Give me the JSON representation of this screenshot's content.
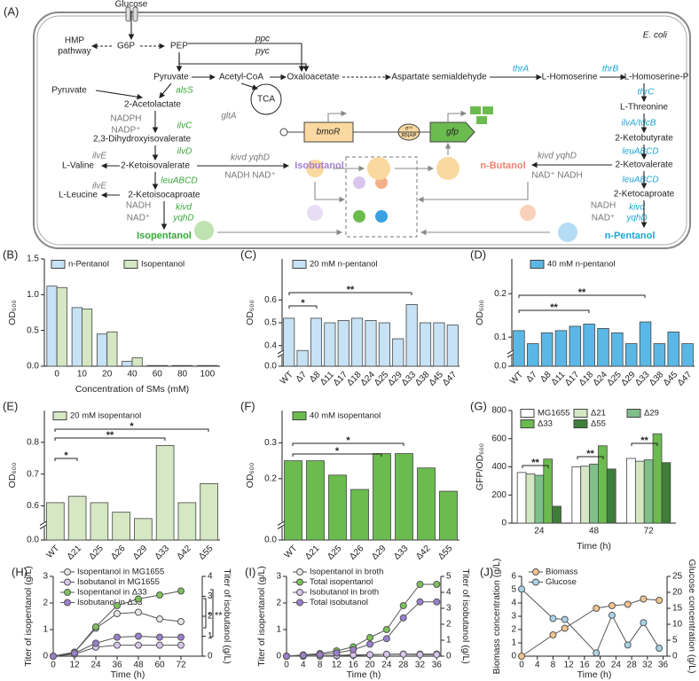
{
  "diagram": {
    "panel": "(A)",
    "labels": [
      "Glucose",
      "E. coli",
      "G6P",
      "HMP",
      "pathway",
      "PEP",
      "ppc",
      "pyc",
      "Pyruvate",
      "Acetyl-CoA",
      "Oxaloacetate",
      "Aspartate semialdehyde",
      "thrA",
      "L-Homoserine",
      "thrB",
      "L-Homoserine-P",
      "thrC",
      "L-Threonine",
      "ilvA/tdcB",
      "2-Ketobutyrate",
      "leuABCD",
      "2-Ketovalerate",
      "kivd  yqhD",
      "NAD⁺  NADH",
      "n-Butanol",
      "leuABCD",
      "2-Ketocaproate",
      "NADH",
      "NAD⁺",
      "kivd",
      "yqhD",
      "n-Pentanol",
      "Pyruvate",
      "alsS",
      "gltA",
      "TCA",
      "2-Acetolactate",
      "NADPH",
      "NADP⁺",
      "ilvC",
      "2,3-Dihydroxyisovalerate",
      "ilvD",
      "2-Ketoisovalerate",
      "ilvE",
      "L-Valine",
      "kivd  yqhD",
      "NADH  NAD⁺",
      "Isobutanol",
      "leuABCD",
      "ilvE",
      "L-Leucine",
      "2-Ketoisocaproate",
      "NADH",
      "NAD⁺",
      "kivd",
      "yqhD",
      "Isopentanol",
      "bmoR",
      "gfp",
      "σ⁵⁴",
      "RNAP"
    ]
  },
  "chart_data": [
    {
      "type": "bar",
      "panel": "(B)",
      "xlabel": "Concentration of SMs (mM)",
      "ylabel": "OD₆₀₀",
      "categories": [
        "0",
        "10",
        "20",
        "40",
        "60",
        "80",
        "100"
      ],
      "series": [
        {
          "name": "n-Pentanol",
          "color": "#c6e2f4",
          "values": [
            1.12,
            0.82,
            0.45,
            0.07,
            0.01,
            0.01,
            0.01
          ]
        },
        {
          "name": "Isopentanol",
          "color": "#d5e7c3",
          "values": [
            1.1,
            0.8,
            0.48,
            0.12,
            0.01,
            0.01,
            0.01
          ]
        }
      ],
      "ylim": [
        0,
        1.5
      ],
      "yticks": [
        {
          "value": 0,
          "label": "0.0"
        },
        0.5,
        {
          "value": 1,
          "label": "1.0"
        },
        1.5
      ],
      "xtick_rotation": 0,
      "annotations": []
    },
    {
      "type": "bar",
      "panel": "(C)",
      "ylabel": "OD₆₀₀",
      "categories": [
        "WT",
        "Δ7",
        "Δ8",
        "Δ11",
        "Δ17",
        "Δ18",
        "Δ24",
        "Δ25",
        "Δ29",
        "Δ33",
        "Δ38",
        "Δ45",
        "Δ47"
      ],
      "series": [
        {
          "name": "20 mM n-pentanol",
          "color": "#c6e2f4",
          "values": [
            0.52,
            0.36,
            0.52,
            0.5,
            0.51,
            0.52,
            0.51,
            0.5,
            0.43,
            0.58,
            0.5,
            0.5,
            0.49
          ]
        }
      ],
      "ylim": [
        0,
        0.78
      ],
      "ybreak": [
        0.03,
        0.38
      ],
      "yticks": [
        {
          "value": 0,
          "label": "0.0"
        },
        0.4,
        0.5,
        0.6
      ],
      "xtick_rotation": -45,
      "annotations": [
        "*",
        "**"
      ]
    },
    {
      "type": "bar",
      "panel": "(D)",
      "ylabel": "OD₆₀₀",
      "categories": [
        "WT",
        "Δ7",
        "Δ8",
        "Δ11",
        "Δ17",
        "Δ18",
        "Δ24",
        "Δ25",
        "Δ29",
        "Δ33",
        "Δ38",
        "Δ45",
        "Δ47"
      ],
      "series": [
        {
          "name": "40 mM n-pentanol",
          "color": "#5bb8e6",
          "values": [
            0.115,
            0.085,
            0.11,
            0.115,
            0.125,
            0.13,
            0.12,
            0.11,
            0.085,
            0.135,
            0.085,
            0.112,
            0.085
          ]
        }
      ],
      "ylim": [
        0,
        0.28
      ],
      "ybreak": [
        0.02,
        0.07
      ],
      "yticks": [
        {
          "value": 0,
          "label": "0.0"
        },
        0.1,
        0.2
      ],
      "xtick_rotation": -45,
      "annotations": [
        "**",
        "**"
      ]
    },
    {
      "type": "bar",
      "panel": "(E)",
      "ylabel": "OD₆₀₀",
      "categories": [
        "WT",
        "Δ21",
        "Δ25",
        "Δ26",
        "Δ29",
        "Δ33",
        "Δ42",
        "Δ55"
      ],
      "series": [
        {
          "name": "20 mM isopentanol",
          "color": "#d5e7c3",
          "values": [
            0.61,
            0.63,
            0.61,
            0.58,
            0.56,
            0.79,
            0.61,
            0.67
          ]
        }
      ],
      "ylim": [
        0,
        0.9
      ],
      "ybreak": [
        0.03,
        0.55
      ],
      "yticks": [
        {
          "value": 0,
          "label": "0.0"
        },
        0.6,
        0.7,
        0.8
      ],
      "xtick_rotation": -45,
      "annotations": [
        "*",
        "**",
        "*"
      ]
    },
    {
      "type": "bar",
      "panel": "(F)",
      "ylabel": "OD₆₀₀",
      "categories": [
        "WT",
        "Δ21",
        "Δ25",
        "Δ26",
        "Δ29",
        "Δ33",
        "Δ42",
        "Δ55"
      ],
      "series": [
        {
          "name": "40 mM isopentanol",
          "color": "#6cbb4f",
          "values": [
            0.25,
            0.25,
            0.21,
            0.17,
            0.27,
            0.27,
            0.23,
            0.165
          ]
        }
      ],
      "ylim": [
        0,
        0.39
      ],
      "ybreak": [
        0.01,
        0.08
      ],
      "yticks": [
        {
          "value": 0,
          "label": "0.0"
        },
        0.2,
        0.3
      ],
      "xtick_rotation": -45,
      "annotations": [
        "*",
        "*"
      ]
    },
    {
      "type": "bar",
      "panel": "(G)",
      "xlabel": "Time (h)",
      "ylabel": "GFP/OD₆₀₀",
      "categories": [
        "24",
        "48",
        "72"
      ],
      "series": [
        {
          "name": "MG1655",
          "color": "#ffffff",
          "values": [
            360,
            400,
            460
          ]
        },
        {
          "name": "Δ21",
          "color": "#d5e7c3",
          "values": [
            350,
            405,
            440
          ]
        },
        {
          "name": "Δ29",
          "color": "#7fbf8a",
          "values": [
            340,
            420,
            450
          ]
        },
        {
          "name": "Δ33",
          "color": "#6cbb4f",
          "values": [
            455,
            550,
            635
          ]
        },
        {
          "name": "Δ55",
          "color": "#3f7d3a",
          "values": [
            120,
            385,
            430
          ]
        }
      ],
      "ylim": [
        0,
        800
      ],
      "yticks": [
        0,
        200,
        400,
        600,
        800
      ],
      "xtick_rotation": 0,
      "annotations": [
        "**",
        "**",
        "**"
      ]
    },
    {
      "type": "line",
      "panel": "(H)",
      "xlabel": "Time (h)",
      "ylabel": "Titer of isopentanol (g/L)",
      "y2label": "Titer of isobutanol (g/L)",
      "x": [
        0,
        12,
        24,
        36,
        48,
        60,
        72
      ],
      "series": [
        {
          "name": "Isopentanol in MG1655",
          "color": "#e8e8e8",
          "values": [
            0,
            0.15,
            1.05,
            1.6,
            1.65,
            1.4,
            1.3
          ]
        },
        {
          "name": "Isobutanol in MG1655",
          "color": "#d9c6ee",
          "axis": "y2",
          "values": [
            0,
            0.1,
            0.45,
            0.55,
            0.55,
            0.55,
            0.55
          ]
        },
        {
          "name": "Isopentanol in Δ33",
          "color": "#7cc35a",
          "values": [
            0,
            0.15,
            1.1,
            1.9,
            2.15,
            2.3,
            2.45
          ]
        },
        {
          "name": "Isobutanol in Δ33",
          "color": "#9b7fd0",
          "axis": "y2",
          "values": [
            0,
            0.15,
            0.65,
            0.95,
            1.0,
            0.95,
            0.95
          ]
        }
      ],
      "xlim": [
        0,
        84
      ],
      "xticks": [
        0,
        12,
        24,
        36,
        48,
        60,
        72
      ],
      "ylim": [
        0,
        3
      ],
      "yticks": [
        0,
        1,
        2,
        3
      ],
      "y2lim": [
        0,
        4
      ],
      "y2ticks": [
        0,
        1,
        2,
        3,
        4
      ],
      "annotations": [
        "*",
        "**"
      ]
    },
    {
      "type": "line",
      "panel": "(I)",
      "xlabel": "Time (h)",
      "ylabel": "Titer of isopentanol (g/L)",
      "y2label": "Titer of isobutanol (g/L)",
      "x": [
        0,
        4,
        8,
        12,
        16,
        20,
        24,
        28,
        32,
        36
      ],
      "series": [
        {
          "name": "Isopentanol in broth",
          "color": "#e8e8e8",
          "values": [
            0,
            0,
            0,
            0.02,
            0.03,
            0.05,
            0.07,
            0.08,
            0.08,
            0.08
          ]
        },
        {
          "name": "Total isopentanol",
          "color": "#7cc35a",
          "values": [
            0,
            0.05,
            0.1,
            0.2,
            0.35,
            0.7,
            1.0,
            1.9,
            2.7,
            2.7
          ]
        },
        {
          "name": "Isobutanol in broth",
          "color": "#d9c6ee",
          "axis": "y2",
          "values": [
            0,
            0,
            0.02,
            0.05,
            0.08,
            0.1,
            0.12,
            0.12,
            0.1,
            0.1
          ]
        },
        {
          "name": "Total isobutanol",
          "color": "#9b7fd0",
          "axis": "y2",
          "values": [
            0,
            0.05,
            0.1,
            0.2,
            0.4,
            0.75,
            1.1,
            2.4,
            3.4,
            3.4
          ]
        }
      ],
      "xlim": [
        0,
        37
      ],
      "xticks": [
        0,
        4,
        8,
        12,
        16,
        20,
        24,
        28,
        32,
        36
      ],
      "ylim": [
        0,
        3
      ],
      "yticks": [
        0,
        1,
        2,
        3
      ],
      "y2lim": [
        0,
        5
      ],
      "y2ticks": [
        0,
        1,
        2,
        3,
        4,
        5
      ],
      "annotations": []
    },
    {
      "type": "line",
      "panel": "(J)",
      "xlabel": "Time (h)",
      "ylabel": "Biomass concentration (g/L)",
      "y2label": "Glucose concentration (g/L)",
      "x": [
        0,
        8,
        11,
        19,
        23,
        27,
        31,
        35
      ],
      "series": [
        {
          "name": "Biomass",
          "color": "#f2c48e",
          "values": [
            0,
            1.6,
            2.1,
            3.6,
            3.8,
            3.9,
            4.3,
            4.2
          ]
        },
        {
          "name": "Glucose",
          "color": "#a8d4ea",
          "axis": "y2",
          "values": [
            21,
            11.8,
            11.5,
            1,
            12.8,
            3.5,
            10.5,
            2.5
          ]
        }
      ],
      "xlim": [
        0,
        37
      ],
      "xticks": [
        0,
        4,
        8,
        12,
        16,
        20,
        24,
        28,
        32,
        36
      ],
      "ylim": [
        0,
        6
      ],
      "yticks": [
        0,
        1,
        2,
        3,
        4,
        5,
        6
      ],
      "y2lim": [
        0,
        25
      ],
      "y2ticks": [
        0,
        5,
        10,
        15,
        20,
        25
      ],
      "annotations": []
    }
  ]
}
